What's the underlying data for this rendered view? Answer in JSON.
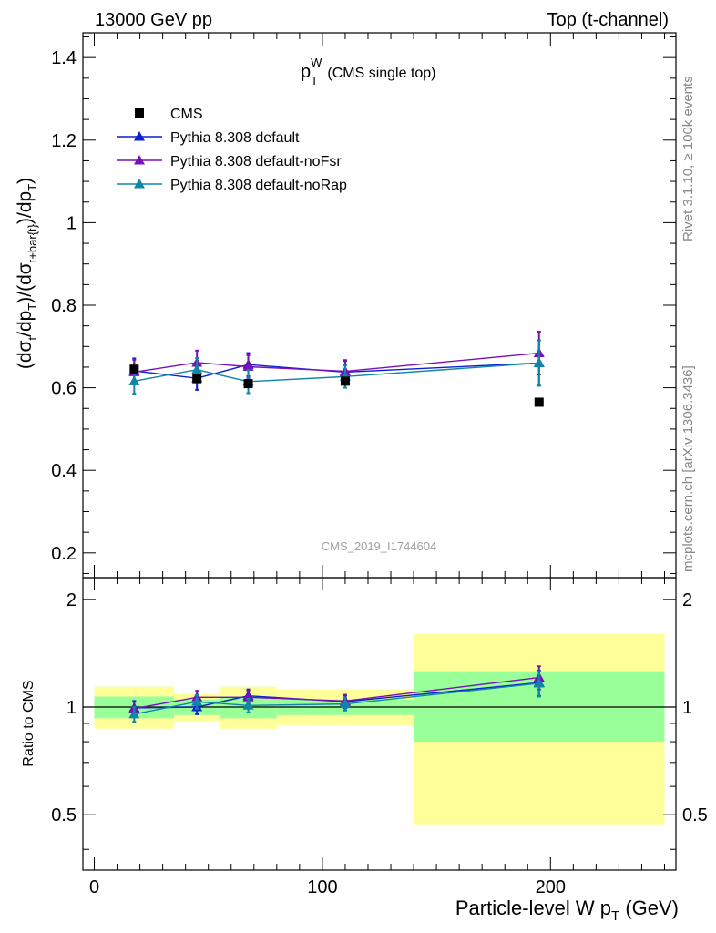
{
  "header": {
    "left_label": "13000 GeV pp",
    "right_label": "Top (t-channel)"
  },
  "title": {
    "main": "p",
    "sub": "T",
    "sup": "W",
    "note": "(CMS single top)"
  },
  "side_text": {
    "rivet": "Rivet 3.1.10, ≥ 100k events",
    "mcplots": "mcplots.cern.ch [arXiv:1306.3436]"
  },
  "watermark": "CMS_2019_I1744604",
  "colors": {
    "cms": "#000000",
    "default": "#0b1fd4",
    "noFsr": "#7a10b8",
    "noRap": "#0f86a8",
    "band_yellow": "#ffff99",
    "band_green": "#99ff99"
  },
  "legend": {
    "position": "top-left",
    "entries": [
      {
        "key": "cms",
        "label": "CMS"
      },
      {
        "key": "default",
        "label": "Pythia 8.308 default"
      },
      {
        "key": "noFsr",
        "label": "Pythia 8.308 default-noFsr"
      },
      {
        "key": "noRap",
        "label": "Pythia 8.308 default-noRap"
      }
    ]
  },
  "chart_data": [
    {
      "type": "scatter",
      "panel": "main",
      "ylabel": {
        "parts": [
          {
            "t": "(dσ"
          },
          {
            "t": "t",
            "s": "sub"
          },
          {
            "t": "/dp"
          },
          {
            "t": "T",
            "s": "sub"
          },
          {
            "t": ")/(dσ"
          },
          {
            "t": "t+bar{t}",
            "s": "sub"
          },
          {
            "t": ")/dp"
          },
          {
            "t": "T",
            "s": "sub"
          },
          {
            "t": ")"
          }
        ]
      },
      "xlim": [
        -5,
        255
      ],
      "ylim": [
        0.14,
        1.46
      ],
      "yticks": [
        0.2,
        0.4,
        0.6,
        0.8,
        1.0,
        1.2,
        1.4
      ],
      "ytick_labels": [
        "0.2",
        "0.4",
        "0.6",
        "0.8",
        "1",
        "1.2",
        "1.4"
      ],
      "series": [
        {
          "key": "cms",
          "name": "CMS",
          "marker": "square",
          "x": [
            17.5,
            45,
            67.5,
            110,
            195
          ],
          "y": [
            0.645,
            0.622,
            0.61,
            0.616,
            0.565
          ]
        },
        {
          "key": "default",
          "name": "Pythia 8.308 default",
          "marker": "triangle",
          "x": [
            17.5,
            45,
            67.5,
            110,
            195
          ],
          "y": [
            0.641,
            0.623,
            0.656,
            0.638,
            0.66
          ],
          "err": [
            0.03,
            0.028,
            0.028,
            0.027,
            0.055
          ]
        },
        {
          "key": "noFsr",
          "name": "Pythia 8.308 default-noFsr",
          "marker": "triangle",
          "x": [
            17.5,
            45,
            67.5,
            110,
            195
          ],
          "y": [
            0.638,
            0.661,
            0.651,
            0.64,
            0.684
          ],
          "err": [
            0.03,
            0.029,
            0.028,
            0.027,
            0.052
          ]
        },
        {
          "key": "noRap",
          "name": "Pythia 8.308 default-noRap",
          "marker": "triangle",
          "x": [
            17.5,
            45,
            67.5,
            110,
            195
          ],
          "y": [
            0.616,
            0.644,
            0.615,
            0.627,
            0.66
          ],
          "err": [
            0.03,
            0.028,
            0.028,
            0.027,
            0.055
          ]
        }
      ]
    },
    {
      "type": "scatter",
      "panel": "ratio",
      "ylabel": "Ratio to CMS",
      "yscale": "log",
      "xlabel": {
        "parts": [
          {
            "t": "Particle-level W p"
          },
          {
            "t": "T",
            "s": "sub"
          },
          {
            "t": " (GeV)"
          }
        ]
      },
      "xlim": [
        -5,
        255
      ],
      "ylim": [
        0.35,
        2.3
      ],
      "xticks": [
        0,
        100,
        200
      ],
      "xtick_labels": [
        "0",
        "100",
        "200"
      ],
      "yticks": [
        0.5,
        1,
        2
      ],
      "ytick_labels": [
        "0.5",
        "1",
        "2"
      ],
      "bands": [
        {
          "x0": 0,
          "x1": 35,
          "green": [
            0.93,
            1.07
          ],
          "yellow": [
            0.87,
            1.14
          ]
        },
        {
          "x0": 35,
          "x1": 55,
          "green": [
            0.95,
            1.05
          ],
          "yellow": [
            0.91,
            1.09
          ]
        },
        {
          "x0": 55,
          "x1": 80,
          "green": [
            0.93,
            1.07
          ],
          "yellow": [
            0.87,
            1.14
          ]
        },
        {
          "x0": 80,
          "x1": 140,
          "green": [
            0.95,
            1.05
          ],
          "yellow": [
            0.89,
            1.12
          ]
        },
        {
          "x0": 140,
          "x1": 250,
          "green": [
            0.8,
            1.26
          ],
          "yellow": [
            0.47,
            1.6
          ]
        }
      ],
      "series": [
        {
          "key": "default",
          "name": "Pythia 8.308 default",
          "x": [
            17.5,
            45,
            67.5,
            110,
            195
          ],
          "y": [
            0.995,
            1.0,
            1.075,
            1.035,
            1.17
          ],
          "err": [
            0.045,
            0.045,
            0.045,
            0.042,
            0.095
          ]
        },
        {
          "key": "noFsr",
          "name": "Pythia 8.308 default-noFsr",
          "x": [
            17.5,
            45,
            67.5,
            110,
            195
          ],
          "y": [
            0.99,
            1.065,
            1.065,
            1.04,
            1.21
          ],
          "err": [
            0.045,
            0.045,
            0.045,
            0.042,
            0.09
          ]
        },
        {
          "key": "noRap",
          "name": "Pythia 8.308 default-noRap",
          "x": [
            17.5,
            45,
            67.5,
            110,
            195
          ],
          "y": [
            0.955,
            1.035,
            1.01,
            1.02,
            1.165
          ],
          "err": [
            0.045,
            0.045,
            0.045,
            0.042,
            0.095
          ]
        }
      ]
    }
  ]
}
